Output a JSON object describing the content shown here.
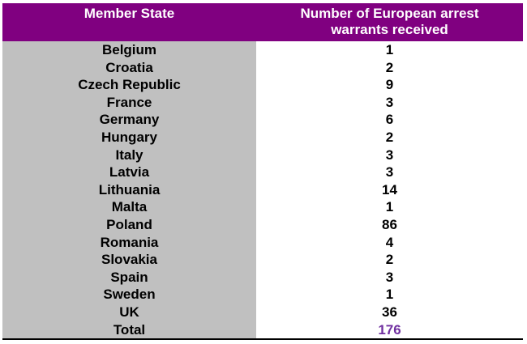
{
  "table": {
    "header": {
      "col1": "Member State",
      "col2_line1": "Number of European arrest",
      "col2_line2": "warrants received"
    },
    "rows": [
      {
        "state": "Belgium",
        "value": "1"
      },
      {
        "state": "Croatia",
        "value": "2"
      },
      {
        "state": "Czech Republic",
        "value": "9"
      },
      {
        "state": "France",
        "value": "3"
      },
      {
        "state": "Germany",
        "value": "6"
      },
      {
        "state": "Hungary",
        "value": "2"
      },
      {
        "state": "Italy",
        "value": "3"
      },
      {
        "state": "Latvia",
        "value": "3"
      },
      {
        "state": "Lithuania",
        "value": "14"
      },
      {
        "state": "Malta",
        "value": "1"
      },
      {
        "state": "Poland",
        "value": "86"
      },
      {
        "state": "Romania",
        "value": "4"
      },
      {
        "state": "Slovakia",
        "value": "2"
      },
      {
        "state": "Spain",
        "value": "3"
      },
      {
        "state": "Sweden",
        "value": "1"
      },
      {
        "state": "UK",
        "value": "36"
      }
    ],
    "total": {
      "label": "Total",
      "value": "176"
    }
  },
  "colors": {
    "header_bg": "#800080",
    "left_col_bg": "#c0c0c0",
    "total_value": "#7030a0"
  }
}
